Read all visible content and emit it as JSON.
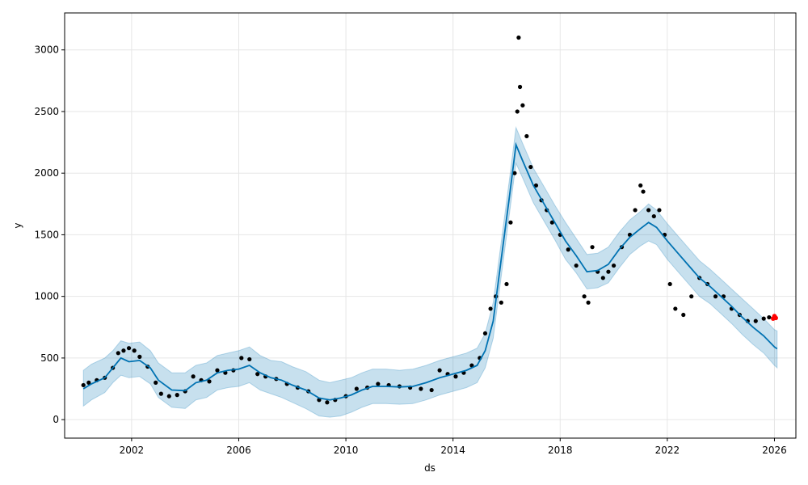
{
  "chart_data": {
    "type": "line",
    "xlabel": "ds",
    "ylabel": "y",
    "xlim": [
      1999.5,
      2026.8
    ],
    "ylim": [
      -150,
      3300
    ],
    "grid": true,
    "x_ticks": [
      2002,
      2006,
      2010,
      2014,
      2018,
      2022,
      2026
    ],
    "x_tick_labels": [
      "2002",
      "2006",
      "2010",
      "2014",
      "2018",
      "2022",
      "2026"
    ],
    "y_ticks": [
      0,
      500,
      1000,
      1500,
      2000,
      2500,
      3000
    ],
    "y_tick_labels": [
      "0",
      "500",
      "1000",
      "1500",
      "2000",
      "2500",
      "3000"
    ],
    "colors": {
      "observed": "#000000",
      "forecast": "#0072B2",
      "uncertainty": "#0072B2",
      "recent": "#ff0000",
      "grid": "#e6e6e6",
      "axis": "#000000"
    },
    "series": [
      {
        "role": "forecast",
        "x": [
          2000.2,
          2000.5,
          2001.0,
          2001.3,
          2001.6,
          2001.9,
          2002.3,
          2002.7,
          2003.0,
          2003.5,
          2004.0,
          2004.4,
          2004.8,
          2005.2,
          2005.6,
          2006.0,
          2006.4,
          2006.8,
          2007.2,
          2007.6,
          2008.0,
          2008.5,
          2009.0,
          2009.4,
          2009.8,
          2010.2,
          2010.6,
          2011.0,
          2011.5,
          2012.0,
          2012.5,
          2013.0,
          2013.5,
          2014.0,
          2014.5,
          2014.9,
          2015.2,
          2015.5,
          2015.8,
          2016.1,
          2016.35,
          2016.6,
          2017.0,
          2017.4,
          2017.8,
          2018.2,
          2018.6,
          2019.0,
          2019.4,
          2019.8,
          2020.2,
          2020.6,
          2021.0,
          2021.3,
          2021.6,
          2022.0,
          2022.4,
          2022.8,
          2023.2,
          2023.6,
          2024.0,
          2024.4,
          2024.8,
          2025.2,
          2025.6,
          2026.0,
          2026.1
        ],
        "y": [
          250,
          290,
          340,
          420,
          500,
          470,
          480,
          420,
          320,
          240,
          235,
          300,
          320,
          380,
          400,
          410,
          440,
          380,
          340,
          320,
          280,
          240,
          175,
          160,
          175,
          200,
          240,
          270,
          270,
          265,
          270,
          300,
          340,
          370,
          400,
          440,
          560,
          800,
          1300,
          1800,
          2230,
          2100,
          1900,
          1750,
          1600,
          1450,
          1330,
          1200,
          1210,
          1260,
          1380,
          1480,
          1550,
          1600,
          1560,
          1450,
          1350,
          1250,
          1150,
          1080,
          1000,
          920,
          830,
          750,
          680,
          590,
          575
        ]
      },
      {
        "role": "uncertainty",
        "x": [
          2000.2,
          2000.5,
          2001.0,
          2001.3,
          2001.6,
          2001.9,
          2002.3,
          2002.7,
          2003.0,
          2003.5,
          2004.0,
          2004.4,
          2004.8,
          2005.2,
          2005.6,
          2006.0,
          2006.4,
          2006.8,
          2007.2,
          2007.6,
          2008.0,
          2008.5,
          2009.0,
          2009.4,
          2009.8,
          2010.2,
          2010.6,
          2011.0,
          2011.5,
          2012.0,
          2012.5,
          2013.0,
          2013.5,
          2014.0,
          2014.5,
          2014.9,
          2015.2,
          2015.5,
          2015.8,
          2016.1,
          2016.35,
          2016.6,
          2017.0,
          2017.4,
          2017.8,
          2018.2,
          2018.6,
          2019.0,
          2019.4,
          2019.8,
          2020.2,
          2020.6,
          2021.0,
          2021.3,
          2021.6,
          2022.0,
          2022.4,
          2022.8,
          2023.2,
          2023.6,
          2024.0,
          2024.4,
          2024.8,
          2025.2,
          2025.6,
          2026.0,
          2026.1
        ],
        "lower": [
          110,
          160,
          220,
          300,
          360,
          340,
          350,
          290,
          180,
          100,
          90,
          160,
          180,
          240,
          260,
          270,
          300,
          240,
          210,
          180,
          140,
          90,
          30,
          20,
          30,
          60,
          100,
          130,
          130,
          125,
          130,
          160,
          200,
          230,
          260,
          300,
          420,
          660,
          1160,
          1660,
          2080,
          1960,
          1760,
          1610,
          1460,
          1300,
          1190,
          1060,
          1070,
          1110,
          1230,
          1340,
          1410,
          1450,
          1420,
          1300,
          1200,
          1100,
          1000,
          940,
          860,
          780,
          690,
          610,
          540,
          440,
          420
        ],
        "upper": [
          400,
          450,
          500,
          560,
          640,
          620,
          630,
          560,
          460,
          380,
          380,
          440,
          460,
          520,
          540,
          560,
          590,
          520,
          480,
          470,
          430,
          390,
          320,
          300,
          320,
          340,
          380,
          410,
          410,
          400,
          410,
          440,
          480,
          510,
          540,
          580,
          700,
          950,
          1440,
          1940,
          2370,
          2240,
          2040,
          1890,
          1740,
          1600,
          1470,
          1340,
          1350,
          1400,
          1520,
          1620,
          1690,
          1750,
          1700,
          1590,
          1490,
          1390,
          1290,
          1220,
          1140,
          1060,
          980,
          900,
          820,
          730,
          720
        ]
      },
      {
        "role": "observed",
        "x": [
          2000.2,
          2000.4,
          2000.7,
          2001.0,
          2001.3,
          2001.5,
          2001.7,
          2001.9,
          2002.1,
          2002.3,
          2002.6,
          2002.9,
          2003.1,
          2003.4,
          2003.7,
          2004.0,
          2004.3,
          2004.6,
          2004.9,
          2005.2,
          2005.5,
          2005.8,
          2006.1,
          2006.4,
          2006.7,
          2007.0,
          2007.4,
          2007.8,
          2008.2,
          2008.6,
          2009.0,
          2009.3,
          2009.6,
          2010.0,
          2010.4,
          2010.8,
          2011.2,
          2011.6,
          2012.0,
          2012.4,
          2012.8,
          2013.2,
          2013.5,
          2013.8,
          2014.1,
          2014.4,
          2014.7,
          2015.0,
          2015.2,
          2015.4,
          2015.6,
          2015.8,
          2016.0,
          2016.15,
          2016.3,
          2016.4,
          2016.45,
          2016.5,
          2016.6,
          2016.75,
          2016.9,
          2017.1,
          2017.3,
          2017.5,
          2017.7,
          2018.0,
          2018.3,
          2018.6,
          2018.9,
          2019.05,
          2019.2,
          2019.4,
          2019.6,
          2019.8,
          2020.0,
          2020.3,
          2020.6,
          2020.8,
          2021.0,
          2021.1,
          2021.3,
          2021.5,
          2021.7,
          2021.9,
          2022.1,
          2022.3,
          2022.6,
          2022.9,
          2023.2,
          2023.5,
          2023.8,
          2024.1,
          2024.4,
          2024.7,
          2025.0,
          2025.3,
          2025.6,
          2025.8
        ],
        "y": [
          280,
          300,
          320,
          340,
          420,
          540,
          560,
          580,
          560,
          510,
          430,
          300,
          210,
          190,
          200,
          230,
          350,
          320,
          310,
          400,
          380,
          400,
          500,
          490,
          370,
          350,
          330,
          290,
          260,
          230,
          160,
          140,
          160,
          190,
          250,
          260,
          290,
          280,
          270,
          260,
          250,
          240,
          400,
          370,
          350,
          380,
          440,
          500,
          700,
          900,
          1000,
          950,
          1100,
          1600,
          2000,
          2500,
          3100,
          2700,
          2550,
          2300,
          2050,
          1900,
          1780,
          1700,
          1600,
          1500,
          1380,
          1250,
          1000,
          950,
          1400,
          1200,
          1150,
          1200,
          1250,
          1400,
          1500,
          1700,
          1900,
          1850,
          1700,
          1650,
          1700,
          1500,
          1100,
          900,
          850,
          1000,
          1150,
          1100,
          1000,
          1000,
          900,
          850,
          800,
          800,
          820,
          830
        ]
      },
      {
        "role": "recent",
        "x": [
          2025.95,
          2026.0,
          2026.02,
          2026.05
        ],
        "y": [
          820,
          840,
          830,
          825
        ]
      }
    ]
  }
}
